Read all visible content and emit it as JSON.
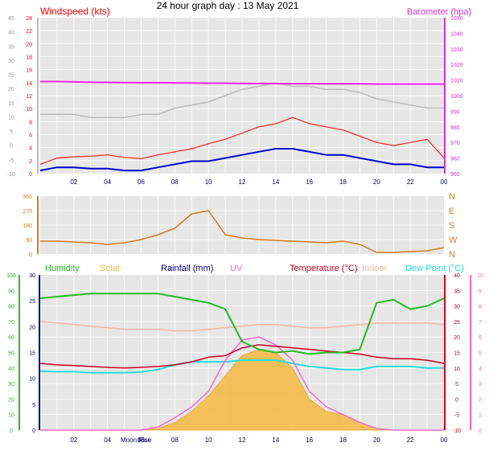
{
  "title": "24 hour graph day : 13 May 2021",
  "colors": {
    "wind": "#ff0000",
    "gust": "#ff2020",
    "avg": "#0000cc",
    "baro": "#cc33cc",
    "baroLine": "#ee22ee",
    "dir": "#d87a1a",
    "humidity": "#22bb22",
    "solar": "#f5b840",
    "rain": "#000088",
    "uv": "#ff66cc",
    "temp": "#cc0022",
    "indoor": "#f4b8a0",
    "dew": "#22dddd",
    "panel": "#e6e6e6",
    "grid": "#ffffff",
    "axisGrey": "#999999"
  },
  "footer": {
    "moon": "Moon Rise",
    "rise": "Rise"
  },
  "chart_data": [
    {
      "type": "line",
      "title": "",
      "legend": [
        "Windspeed (kts)",
        "Barometer (hpa)"
      ],
      "x_ticks": [
        "02",
        "04",
        "06",
        "08",
        "10",
        "12",
        "14",
        "16",
        "18",
        "20",
        "22",
        "00"
      ],
      "x": [
        0,
        1,
        2,
        3,
        4,
        5,
        6,
        7,
        8,
        9,
        10,
        11,
        12,
        13,
        14,
        15,
        16,
        17,
        18,
        19,
        20,
        21,
        22,
        23,
        24
      ],
      "y_left_ticks": [
        "-10",
        "-5",
        "0",
        "5",
        "10",
        "15",
        "20",
        "25",
        "30",
        "35",
        "40",
        "45"
      ],
      "y_mid_ticks": [
        "0",
        "2",
        "4",
        "6",
        "8",
        "10",
        "12",
        "14",
        "16",
        "18",
        "20",
        "22",
        "24"
      ],
      "y_right_ticks": [
        "950",
        "960",
        "970",
        "980",
        "990",
        "1000",
        "1010",
        "1020",
        "1030",
        "1040",
        "1050"
      ],
      "ylim_kts": [
        0,
        25
      ],
      "ylim_hpa": [
        950,
        1050
      ],
      "series": [
        {
          "name": "Windspeed (kts)",
          "axis": "kts",
          "values": [
            1.5,
            2.5,
            2.7,
            2.8,
            3.0,
            2.6,
            2.4,
            3.0,
            3.5,
            4.0,
            4.8,
            5.5,
            6.5,
            7.5,
            8.0,
            9.0,
            8.0,
            7.5,
            7.0,
            6.0,
            5.0,
            4.5,
            5.0,
            5.5,
            2.5
          ]
        },
        {
          "name": "Barometer (hpa)",
          "axis": "hpa",
          "values": [
            1009,
            1009,
            1008.8,
            1008.6,
            1008.5,
            1008.4,
            1008.3,
            1008.3,
            1008.2,
            1008.1,
            1008,
            1008,
            1007.9,
            1007.8,
            1007.8,
            1007.7,
            1007.7,
            1007.6,
            1007.6,
            1007.6,
            1007.5,
            1007.5,
            1007.5,
            1007.5,
            1007.5
          ]
        },
        {
          "axis": "kts",
          "values": [
            9.5,
            9.5,
            9.5,
            9.0,
            9.0,
            9.0,
            9.5,
            9.5,
            10.5,
            11.0,
            11.5,
            12.5,
            13.5,
            14.0,
            14.5,
            14.0,
            14.0,
            13.5,
            13.5,
            13.0,
            12.0,
            11.5,
            11.0,
            10.5,
            10.5
          ]
        },
        {
          "axis": "kts",
          "values": [
            0.5,
            1.0,
            1.0,
            0.8,
            0.8,
            0.5,
            0.5,
            1.0,
            1.5,
            2.0,
            2.0,
            2.5,
            3.0,
            3.5,
            4.0,
            4.0,
            3.5,
            3.0,
            3.0,
            2.5,
            2.0,
            1.5,
            1.5,
            1.0,
            1.0
          ]
        }
      ]
    },
    {
      "type": "line",
      "title": "",
      "x": [
        0,
        1,
        2,
        3,
        4,
        5,
        6,
        7,
        8,
        9,
        10,
        11,
        12,
        13,
        14,
        15,
        16,
        17,
        18,
        19,
        20,
        21,
        22,
        23,
        24
      ],
      "y_ticks": [
        "0",
        "90",
        "180",
        "270",
        "360"
      ],
      "compass": [
        "N",
        "W",
        "S",
        "E",
        "N"
      ],
      "ylim": [
        0,
        360
      ],
      "series": [
        {
          "values": [
            80,
            80,
            75,
            70,
            60,
            70,
            90,
            120,
            160,
            250,
            270,
            120,
            100,
            90,
            85,
            80,
            75,
            70,
            80,
            60,
            10,
            10,
            15,
            20,
            40
          ]
        }
      ]
    },
    {
      "type": "line",
      "title": "",
      "legend": [
        "Humidity",
        "Solar",
        "Rainfall (mm)",
        "UV",
        "Temperature (°C)",
        "Indoor",
        "Dew Point (°C)"
      ],
      "x_ticks": [
        "02",
        "04",
        "06",
        "08",
        "10",
        "12",
        "14",
        "16",
        "18",
        "20",
        "22",
        "00"
      ],
      "x": [
        0,
        1,
        2,
        3,
        4,
        5,
        6,
        7,
        8,
        9,
        10,
        11,
        12,
        13,
        14,
        15,
        16,
        17,
        18,
        19,
        20,
        21,
        22,
        23,
        24
      ],
      "y_humidity_ticks": [
        "0",
        "10",
        "20",
        "30",
        "40",
        "50",
        "60",
        "70",
        "80",
        "90",
        "100"
      ],
      "y_rain_ticks": [
        "0",
        "5",
        "10",
        "15",
        "20",
        "25",
        "30"
      ],
      "y_temp_ticks": [
        "-10",
        "-5",
        "0",
        "5",
        "10",
        "15",
        "20",
        "25",
        "30",
        "35",
        "40"
      ],
      "y_uv_ticks": [
        "0",
        "1",
        "2",
        "3",
        "4",
        "5",
        "6",
        "7",
        "8",
        "9",
        "10"
      ],
      "ylim_humidity": [
        0,
        100
      ],
      "ylim_temp": [
        -10,
        40
      ],
      "series": [
        {
          "name": "Humidity",
          "axis": "humidity",
          "values": [
            85,
            86,
            87,
            88,
            88,
            88,
            88,
            88,
            86,
            84,
            82,
            78,
            57,
            52,
            50,
            51,
            49,
            50,
            50,
            52,
            82,
            84,
            78,
            80,
            85
          ]
        },
        {
          "name": "Solar",
          "axis": "humidity",
          "values": [
            0,
            0,
            0,
            0,
            0,
            0,
            0,
            1,
            5,
            12,
            22,
            35,
            48,
            52,
            50,
            40,
            20,
            12,
            10,
            5,
            1,
            0,
            0,
            0,
            0
          ]
        },
        {
          "name": "UV",
          "axis": "uv",
          "values": [
            0,
            0,
            0,
            0,
            0,
            0,
            0,
            0.2,
            0.8,
            1.5,
            2.5,
            4.5,
            5.8,
            6.0,
            5.5,
            4.5,
            2.5,
            1.5,
            1.0,
            0.5,
            0.1,
            0,
            0,
            0,
            0
          ]
        },
        {
          "name": "Temperature (°C)",
          "axis": "temp",
          "values": [
            11.5,
            11,
            10.8,
            10.5,
            10.2,
            10.0,
            10.2,
            10.5,
            11.0,
            12.0,
            13.5,
            14.0,
            16.5,
            17.5,
            17.0,
            16.5,
            16.0,
            15.5,
            15.0,
            14.5,
            13.5,
            13.0,
            13.0,
            12.5,
            11.5
          ]
        },
        {
          "name": "Indoor",
          "axis": "temp",
          "values": [
            25,
            24.5,
            24,
            23.5,
            23,
            22.5,
            22.5,
            22.5,
            22,
            22,
            22.5,
            23,
            23.5,
            24,
            24,
            23.5,
            23,
            23,
            23.5,
            24,
            24.5,
            24.5,
            24.5,
            24.5,
            24
          ]
        },
        {
          "name": "Dew Point (°C)",
          "axis": "temp",
          "values": [
            9,
            8.8,
            8.8,
            8.5,
            8.5,
            8.5,
            8.7,
            9.5,
            11,
            12,
            12,
            12,
            12.5,
            12.5,
            12.5,
            11.5,
            10.5,
            10,
            9.5,
            9.5,
            10.5,
            10.5,
            10.5,
            10,
            10
          ]
        }
      ]
    }
  ]
}
